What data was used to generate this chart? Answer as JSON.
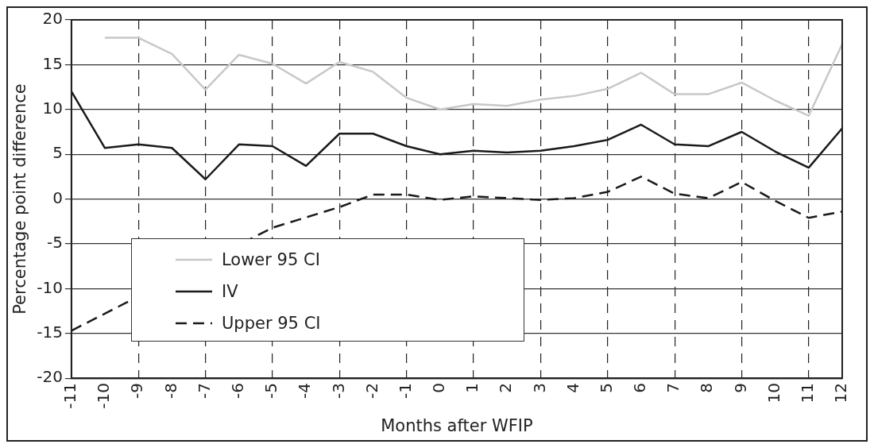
{
  "chart_data": {
    "type": "line",
    "xlabel": "Months after WFIP",
    "ylabel": "Percentage point difference",
    "categories": [
      "-11",
      "-10",
      "-9",
      "-8",
      "-7",
      "-6",
      "-5",
      "-4",
      "-3",
      "-2",
      "-1",
      "0",
      "1",
      "2",
      "3",
      "4",
      "5",
      "6",
      "7",
      "8",
      "9",
      "10",
      "11",
      "12"
    ],
    "series": [
      {
        "name": "Lower 95 CI",
        "color": "#c8c8c8",
        "line_style": "solid",
        "values": [
          null,
          18,
          18,
          16.2,
          12.2,
          16.1,
          15.1,
          12.9,
          15.3,
          14.2,
          11.3,
          10,
          10.6,
          10.4,
          11.1,
          11.5,
          12.3,
          14.1,
          11.7,
          11.7,
          13,
          11,
          9.3,
          17.3
        ]
      },
      {
        "name": "IV",
        "color": "#1a1a1a",
        "line_style": "solid",
        "values": [
          12,
          5.7,
          6.1,
          5.7,
          2.2,
          6.1,
          5.9,
          3.7,
          7.3,
          7.3,
          5.9,
          5,
          5.4,
          5.2,
          5.4,
          5.9,
          6.6,
          8.3,
          6.1,
          5.9,
          7.5,
          5.3,
          3.5,
          7.9
        ]
      },
      {
        "name": "Upper 95 CI",
        "color": "#1a1a1a",
        "line_style": "dashed",
        "values": [
          -14.7,
          null,
          null,
          null,
          null,
          null,
          -3.2,
          null,
          -0.9,
          0.5,
          0.5,
          -0.1,
          0.3,
          0.1,
          -0.1,
          0.1,
          0.8,
          2.5,
          0.6,
          0.1,
          1.9,
          -0.2,
          -2.1,
          -1.4
        ]
      }
    ],
    "ylim": [
      -20,
      20
    ],
    "yticks": [
      -20,
      -15,
      -10,
      -5,
      0,
      5,
      10,
      15,
      20
    ],
    "grid": true,
    "legend": "bottom left",
    "marker": "none"
  }
}
